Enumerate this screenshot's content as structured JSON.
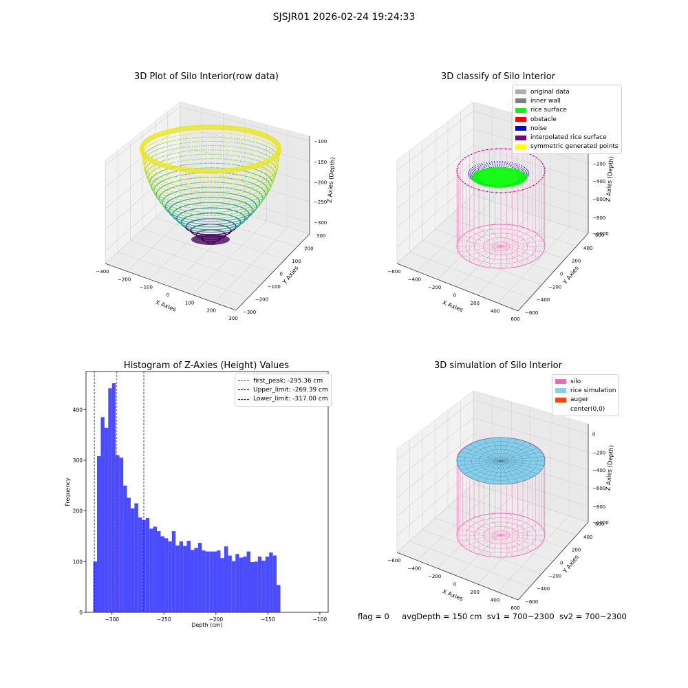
{
  "suptitle": "SJSJR01 2026-02-24 19:24:33",
  "colors": {
    "histogram": "#4b4bff",
    "first_peak_line": "#ff0000",
    "limit_line": "#0000cc",
    "silo": "#ff66b2",
    "rice_simulation": "#87ceeb",
    "auger": "#ff4500",
    "rice_surface": "#00ff00",
    "noise": "#0000dd",
    "interpolated": "#800080",
    "symmetric": "#ffff00",
    "original": "#b0b0b0",
    "inner_wall": "#808080"
  },
  "panel_raw": {
    "title": "3D Plot of Silo Interior(row data)",
    "xlabel": "X Axies",
    "ylabel": "Y Axies",
    "zlabel": "Z Axies (Depth)",
    "x_ticks": [
      "−300",
      "−200",
      "−100",
      "0",
      "100",
      "200",
      "300"
    ],
    "y_ticks": [
      "−300",
      "−200",
      "−100",
      "0",
      "100",
      "200",
      "300"
    ],
    "z_ticks": [
      "−100",
      "−150",
      "−200",
      "−250",
      "−300"
    ]
  },
  "panel_classify": {
    "title": "3D classify of Silo Interior",
    "xlabel": "X Axies",
    "ylabel": "Y Axies",
    "zlabel": "Z Axies (Depth)",
    "x_ticks": [
      "−600",
      "−400",
      "−200",
      "0",
      "200",
      "400",
      "600"
    ],
    "y_ticks": [
      "−600",
      "−400",
      "−200",
      "0",
      "200",
      "400",
      "600"
    ],
    "z_ticks": [
      "0",
      "−200",
      "−400",
      "−600",
      "−800",
      "−1000"
    ],
    "legend": [
      {
        "label": "original data",
        "color": "#b0b0b0"
      },
      {
        "label": "inner wall",
        "color": "#808080"
      },
      {
        "label": "rice surface",
        "color": "#00ff00"
      },
      {
        "label": "obstacle",
        "color": "#ff0000"
      },
      {
        "label": "noise",
        "color": "#0000dd"
      },
      {
        "label": "interpolated rice surface",
        "color": "#800080"
      },
      {
        "label": "symmetric generated points",
        "color": "#ffff00"
      }
    ]
  },
  "panel_sim": {
    "title": "3D simulation of Silo Interior",
    "xlabel": "X Axies",
    "ylabel": "Y Axies",
    "zlabel": "Z Axies (Depth)",
    "x_ticks": [
      "−600",
      "−400",
      "−200",
      "0",
      "200",
      "400",
      "600"
    ],
    "y_ticks": [
      "−600",
      "−400",
      "−200",
      "0",
      "200",
      "400",
      "600"
    ],
    "z_ticks": [
      "0",
      "−200",
      "−400",
      "−600",
      "−800",
      "−1000"
    ],
    "legend": [
      {
        "label": "silo",
        "color": "#ff66b2"
      },
      {
        "label": "rice simulation",
        "color": "#87ceeb"
      },
      {
        "label": "auger",
        "color": "#ff4500"
      },
      {
        "label": "center(0,0)",
        "color": ""
      }
    ]
  },
  "chart_data": {
    "type": "bar",
    "title": "Histogram of Z-Axies (Height) Values",
    "xlabel": "Depth (cm)",
    "ylabel": "Frequency",
    "xlim": [
      -325,
      -92
    ],
    "ylim": [
      0,
      475
    ],
    "x_ticks": [
      -300,
      -250,
      -200,
      -150,
      -100
    ],
    "x_tick_labels": [
      "−300",
      "−250",
      "−200",
      "−150",
      "−100"
    ],
    "y_ticks": [
      0,
      100,
      200,
      300,
      400
    ],
    "bin_start": -318,
    "bin_width": 3.6,
    "values": [
      100,
      308,
      385,
      364,
      442,
      452,
      310,
      305,
      250,
      226,
      205,
      215,
      187,
      182,
      186,
      165,
      169,
      160,
      150,
      146,
      140,
      160,
      132,
      140,
      131,
      141,
      123,
      127,
      137,
      122,
      120,
      120,
      120,
      122,
      107,
      130,
      112,
      101,
      115,
      108,
      110,
      120,
      99,
      100,
      110,
      102,
      110,
      118,
      112,
      54
    ],
    "lines": [
      {
        "label": "first_peak: -295.36 cm",
        "x": -295.36,
        "color": "#ff0000"
      },
      {
        "label": "Upper_limit: -269.39 cm",
        "x": -269.39,
        "color": "#0000cc"
      },
      {
        "label": "Lower_limit: -317.00 cm",
        "x": -317.0,
        "color": "#0000cc"
      }
    ]
  },
  "footer": {
    "flag": "flag = 0",
    "avg": "avgDepth = 150 cm",
    "sv1": "sv1 = 700~2300",
    "sv2": "sv2 = 700~2300"
  }
}
